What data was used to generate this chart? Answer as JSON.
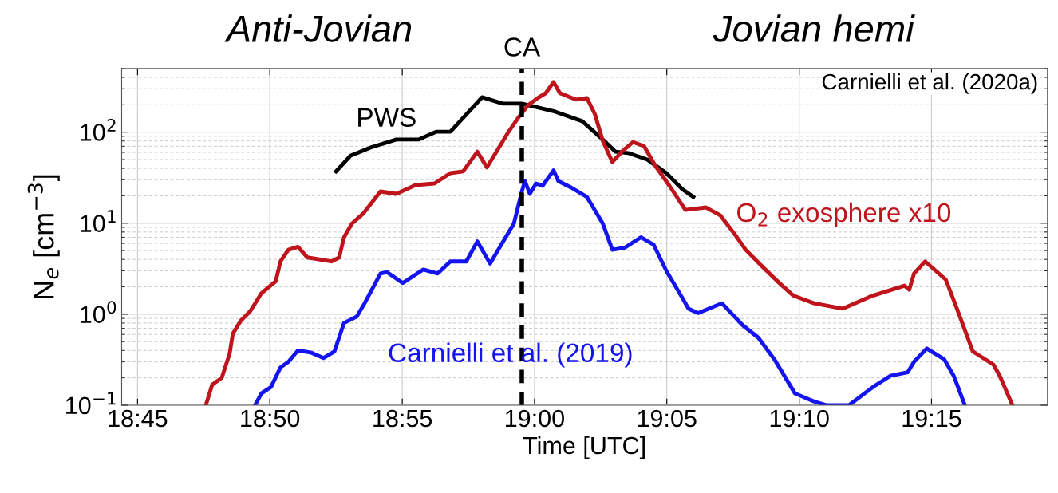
{
  "chart_data": {
    "type": "line",
    "xlabel": "Time [UTC]",
    "ylabel": "N$_{e}$ [cm$^{−3}$]",
    "log": "y",
    "grid": true,
    "legend": false,
    "line_style": "solid",
    "marker": "none",
    "xlim": [
      18.74,
      19.323
    ],
    "ylim": [
      0.1,
      500
    ],
    "xticks": [
      {
        "value": 18.75,
        "label": "18:45"
      },
      {
        "value": 18.8333,
        "label": "18:50"
      },
      {
        "value": 18.9167,
        "label": "18:55"
      },
      {
        "value": 19.0,
        "label": "19:00"
      },
      {
        "value": 19.0833,
        "label": "19:05"
      },
      {
        "value": 19.1667,
        "label": "19:10"
      },
      {
        "value": 19.25,
        "label": "19:15"
      }
    ],
    "yticks": [
      {
        "value": 0.1,
        "label": "10$^{−1}$"
      },
      {
        "value": 1,
        "label": "10$^{0}$"
      },
      {
        "value": 10,
        "label": "10$^{1}$"
      },
      {
        "value": 100,
        "label": "10$^{2}$"
      }
    ],
    "series": [
      {
        "name": "PWS",
        "color": "#000000",
        "x": [
          18.875,
          18.884,
          18.897,
          18.913,
          18.927,
          18.938,
          18.947,
          18.967,
          18.98,
          18.992,
          19.013,
          19.03,
          19.042,
          19.051,
          19.059,
          19.071,
          19.083,
          19.093,
          19.1
        ],
        "values": [
          37,
          55,
          68,
          83,
          83,
          101,
          101,
          242,
          206,
          206,
          168,
          132,
          86,
          61,
          59,
          50,
          35.5,
          23.7,
          19.4
        ]
      },
      {
        "name": "O$_{2}$ exosphere x10",
        "color": "#c0141c",
        "x": [
          18.793,
          18.797,
          18.803,
          18.808,
          18.81,
          18.815,
          18.821,
          18.825,
          18.828,
          18.837,
          18.84,
          18.845,
          18.851,
          18.857,
          18.872,
          18.877,
          18.88,
          18.885,
          18.892,
          18.903,
          18.913,
          18.925,
          18.937,
          18.947,
          18.955,
          18.964,
          18.97,
          18.977,
          18.983,
          18.99,
          18.996,
          19.002,
          19.007,
          19.012,
          19.016,
          19.026,
          19.033,
          19.038,
          19.043,
          19.049,
          19.055,
          19.062,
          19.069,
          19.076,
          19.085,
          19.095,
          19.108,
          19.117,
          19.126,
          19.133,
          19.143,
          19.153,
          19.163,
          19.176,
          19.194,
          19.213,
          19.233,
          19.236,
          19.239,
          19.246,
          19.259,
          19.266,
          19.276,
          19.289,
          19.293,
          19.301
        ],
        "values": [
          0.1,
          0.168,
          0.2,
          0.37,
          0.61,
          0.85,
          1.08,
          1.4,
          1.7,
          2.3,
          3.8,
          5.1,
          5.5,
          4.2,
          3.8,
          4.2,
          7.0,
          9.9,
          12.7,
          22.3,
          21,
          26.2,
          27.3,
          35.5,
          37,
          61,
          41,
          65,
          97,
          146,
          198,
          237,
          268,
          355,
          268,
          228,
          237,
          158,
          80,
          47,
          61,
          78,
          70,
          43,
          25.7,
          14,
          14.9,
          12.2,
          7.6,
          5.1,
          3.4,
          2.3,
          1.6,
          1.32,
          1.15,
          1.6,
          2.06,
          1.86,
          2.8,
          3.8,
          2.4,
          1.15,
          0.39,
          0.28,
          0.21,
          0.1
        ]
      },
      {
        "name": "Carnielli et al. (2019)",
        "color": "#1414f0",
        "x": [
          18.824,
          18.828,
          18.834,
          18.84,
          18.845,
          18.851,
          18.859,
          18.867,
          18.874,
          18.88,
          18.888,
          18.893,
          18.903,
          18.907,
          18.917,
          18.93,
          18.939,
          18.947,
          18.957,
          18.964,
          18.972,
          18.978,
          18.987,
          18.992,
          18.994,
          18.997,
          19.001,
          19.005,
          19.012,
          19.015,
          19.023,
          19.033,
          19.043,
          19.049,
          19.057,
          19.067,
          19.075,
          19.083,
          19.093,
          19.097,
          19.103,
          19.118,
          19.131,
          19.141,
          19.151,
          19.164,
          19.176,
          19.184,
          19.198,
          19.213,
          19.224,
          19.235,
          19.239,
          19.247,
          19.258,
          19.264,
          19.271
        ],
        "values": [
          0.1,
          0.135,
          0.158,
          0.26,
          0.3,
          0.4,
          0.38,
          0.33,
          0.39,
          0.8,
          0.94,
          1.32,
          2.8,
          2.9,
          2.2,
          3.1,
          2.8,
          3.8,
          3.8,
          6.3,
          3.6,
          5.4,
          9.9,
          22.3,
          29,
          21,
          27.3,
          25.7,
          38,
          29,
          24.7,
          19.4,
          9.9,
          5.1,
          5.4,
          7.0,
          5.8,
          3.0,
          1.52,
          1.15,
          1.03,
          1.32,
          0.76,
          0.55,
          0.32,
          0.135,
          0.11,
          0.1,
          0.1,
          0.158,
          0.21,
          0.23,
          0.3,
          0.42,
          0.32,
          0.21,
          0.1
        ]
      }
    ],
    "ref_lines": [
      {
        "axis": "x",
        "value": 18.992,
        "label": "CA",
        "color": "#000000",
        "line_style": "dashed"
      }
    ],
    "annotations": [
      "Carnielli et al. (2020a)",
      "Anti-Jovian",
      "Jovian hemi"
    ]
  }
}
